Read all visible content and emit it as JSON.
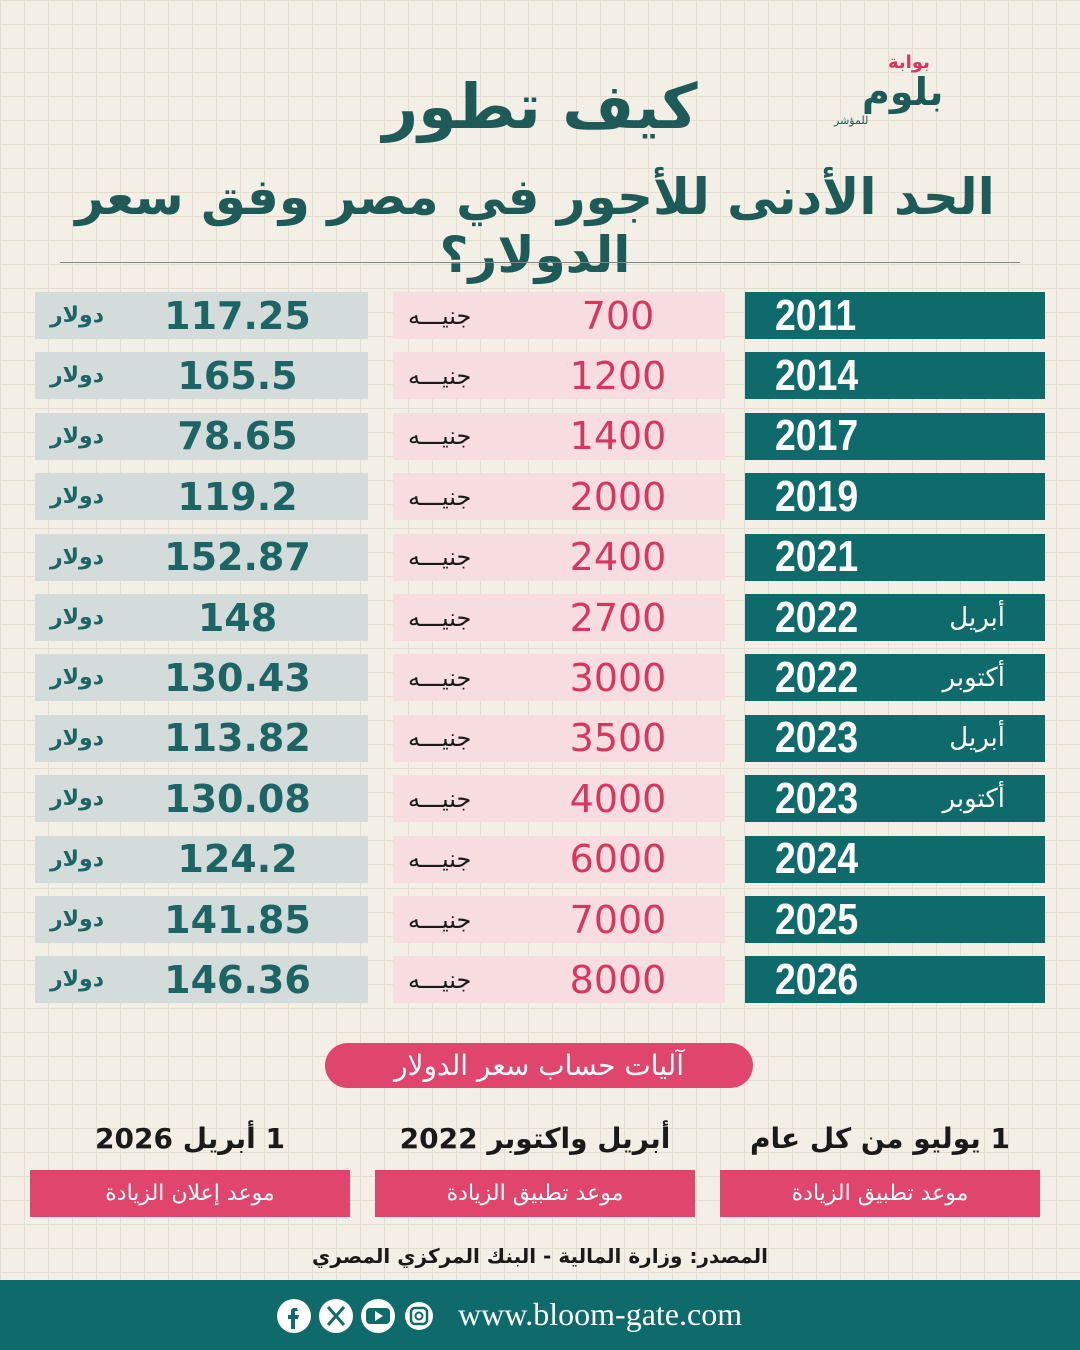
{
  "header": {
    "logo": [
      "بوابة",
      "بلوم",
      "للمؤشر"
    ],
    "title": "كيف تطور",
    "subtitle": "الحد الأدنى للأجور في مصر وفق سعر الدولار؟"
  },
  "table": {
    "rows": [
      [
        "2011",
        null,
        "700",
        "جنيـــه",
        "117.25",
        "دولار"
      ],
      [
        "2014",
        null,
        "1200",
        "جنيـــه",
        "165.5",
        "دولار"
      ],
      [
        "2017",
        null,
        "1400",
        "جنيـــه",
        "78.65",
        "دولار"
      ],
      [
        "2019",
        null,
        "2000",
        "جنيـــه",
        "119.2",
        "دولار"
      ],
      [
        "2021",
        null,
        "2400",
        "جنيـــه",
        "152.87",
        "دولار"
      ],
      [
        "2022",
        "أبريل",
        "2700",
        "جنيـــه",
        "148",
        "دولار"
      ],
      [
        "2022",
        "أكتوبر",
        "3000",
        "جنيـــه",
        "130.43",
        "دولار"
      ],
      [
        "2023",
        "أبريل",
        "3500",
        "جنيـــه",
        "113.82",
        "دولار"
      ],
      [
        "2023",
        "أكتوبر",
        "4000",
        "جنيـــه",
        "130.08",
        "دولار"
      ],
      [
        "2024",
        null,
        "6000",
        "جنيـــه",
        "124.2",
        "دولار"
      ],
      [
        "2025",
        null,
        "7000",
        "جنيـــه",
        "141.85",
        "دولار"
      ],
      [
        "2026",
        null,
        "8000",
        "جنيـــه",
        "146.36",
        "دولار"
      ]
    ]
  },
  "mechanism": {
    "title": "آليات حساب سعر الدولار",
    "notes": [
      {
        "date": "1 يوليو من كل عام",
        "label": "موعد تطبيق الزيادة"
      },
      {
        "date": "أبريل واكتوبر 2022",
        "label": "موعد تطبيق الزيادة"
      },
      {
        "date": "1 أبريل 2026",
        "label": "موعد إعلان الزيادة"
      }
    ]
  },
  "source": "المصدر: وزارة المالية - البنك المركزي المصري",
  "footer": {
    "website": "www.bloom-gate.com"
  }
}
